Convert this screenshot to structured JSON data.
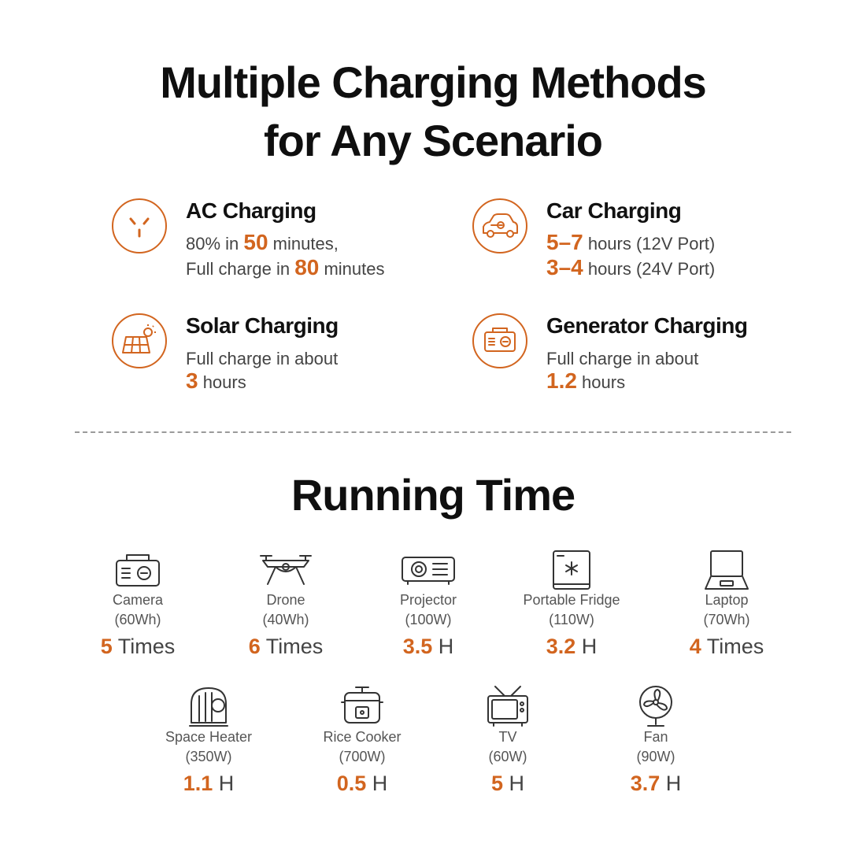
{
  "header": {
    "title_line1": "Multiple Charging Methods",
    "title_line2": "for Any Scenario"
  },
  "methods": [
    {
      "icon": "ac-outlet-icon",
      "title": "AC Charging",
      "lines": [
        {
          "prefix": "80% in ",
          "value": "50",
          "suffix": " minutes,"
        },
        {
          "prefix": "Full charge in ",
          "value": "80",
          "suffix": " minutes"
        }
      ]
    },
    {
      "icon": "car-icon",
      "title": "Car Charging",
      "lines": [
        {
          "prefix": "",
          "value": "5–7",
          "suffix": " hours (12V Port)"
        },
        {
          "prefix": "",
          "value": "3–4",
          "suffix": " hours (24V Port)"
        }
      ]
    },
    {
      "icon": "solar-panel-icon",
      "title": "Solar Charging",
      "lines": [
        {
          "prefix": "Full charge in about",
          "value": "",
          "suffix": ""
        },
        {
          "prefix": "",
          "value": "3",
          "suffix": " hours"
        }
      ]
    },
    {
      "icon": "generator-icon",
      "title": "Generator Charging",
      "lines": [
        {
          "prefix": "Full charge in about",
          "value": "",
          "suffix": ""
        },
        {
          "prefix": "",
          "value": "1.2",
          "suffix": " hours"
        }
      ]
    }
  ],
  "running_time": {
    "title": "Running Time",
    "devices": [
      {
        "icon": "camera-icon",
        "name": "Camera",
        "spec": "(60Wh)",
        "value": "5",
        "unit": " Times"
      },
      {
        "icon": "drone-icon",
        "name": "Drone",
        "spec": "(40Wh)",
        "value": "6",
        "unit": " Times"
      },
      {
        "icon": "projector-icon",
        "name": "Projector",
        "spec": "(100W)",
        "value": "3.5",
        "unit": " H"
      },
      {
        "icon": "fridge-icon",
        "name": "Portable Fridge",
        "spec": "(110W)",
        "value": "3.2",
        "unit": " H"
      },
      {
        "icon": "laptop-icon",
        "name": "Laptop",
        "spec": "(70Wh)",
        "value": "4",
        "unit": " Times"
      },
      {
        "icon": "space-heater-icon",
        "name": "Space Heater",
        "spec": "(350W)",
        "value": "1.1",
        "unit": " H"
      },
      {
        "icon": "rice-cooker-icon",
        "name": "Rice Cooker",
        "spec": "(700W)",
        "value": "0.5",
        "unit": " H"
      },
      {
        "icon": "tv-icon",
        "name": "TV",
        "spec": "(60W)",
        "value": "5",
        "unit": " H"
      },
      {
        "icon": "fan-icon",
        "name": "Fan",
        "spec": "(90W)",
        "value": "3.7",
        "unit": " H"
      }
    ]
  },
  "colors": {
    "accent": "#d2651f",
    "text": "#111111",
    "muted": "#555555"
  }
}
